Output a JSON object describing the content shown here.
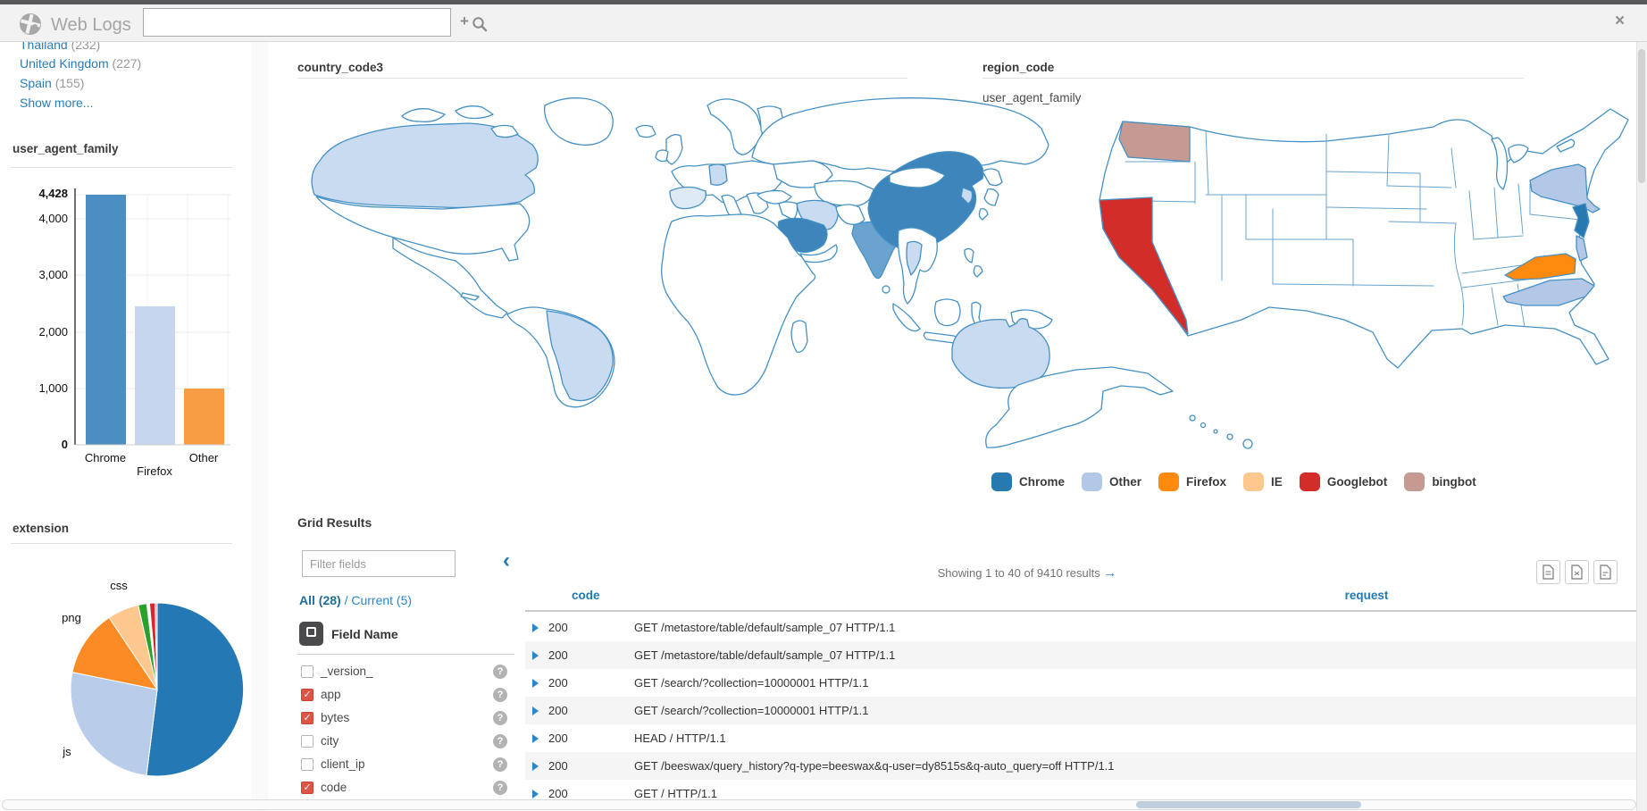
{
  "topbar": {
    "title": "Web Logs",
    "search_value": "",
    "search_placeholder": "",
    "plus_icon": "+",
    "close_icon": "×"
  },
  "sidebar": {
    "facets": [
      {
        "label": "Thailand",
        "count": "(232)"
      },
      {
        "label": "United Kingdom",
        "count": "(227)"
      },
      {
        "label": "Spain",
        "count": "(155)"
      }
    ],
    "show_more": "Show more..."
  },
  "panels": {
    "world_title": "country_code3",
    "us_title": "region_code",
    "us_subtitle": "user_agent_family"
  },
  "chart_data": [
    {
      "type": "bar",
      "title": "user_agent_family",
      "categories": [
        "Chrome",
        "Firefox",
        "Other"
      ],
      "values": [
        4428,
        2450,
        1000
      ],
      "ylim": [
        0,
        4428
      ],
      "yticks": [
        {
          "v": 4428,
          "label": "4,428"
        },
        {
          "v": 4000,
          "label": "4,000"
        },
        {
          "v": 3000,
          "label": "3,000"
        },
        {
          "v": 2000,
          "label": "2,000"
        },
        {
          "v": 1000,
          "label": "1,000"
        },
        {
          "v": 0,
          "label": "0"
        }
      ],
      "colors": [
        "#4b8ec2",
        "#c6d6ee",
        "#f99d45"
      ]
    },
    {
      "type": "pie",
      "title": "extension",
      "slices": [
        {
          "label": "",
          "pct": 51.5,
          "color": "#2478b4"
        },
        {
          "label": "js",
          "pct": 26.0,
          "color": "#b9cce9"
        },
        {
          "label": "png",
          "pct": 12.3,
          "color": "#fd8b25"
        },
        {
          "label": "css",
          "pct": 5.8,
          "color": "#fdc88e"
        },
        {
          "label": "",
          "pct": 1.6,
          "color": "#2ca02c"
        },
        {
          "label": "",
          "pct": 0.5,
          "color": "#ffffff"
        },
        {
          "label": "",
          "pct": 1.0,
          "color": "#d62728"
        },
        {
          "label": "",
          "pct": 0.4,
          "color": "#f2a2a8"
        }
      ]
    },
    {
      "type": "choropleth",
      "title": "country_code3",
      "regions": [
        {
          "name": "Canada",
          "shade": "light"
        },
        {
          "name": "Brazil",
          "shade": "light"
        },
        {
          "name": "Spain",
          "shade": "lighter"
        },
        {
          "name": "Germany",
          "shade": "light"
        },
        {
          "name": "Iran",
          "shade": "light"
        },
        {
          "name": "Saudi Arabia",
          "shade": "dark"
        },
        {
          "name": "India",
          "shade": "medium"
        },
        {
          "name": "China",
          "shade": "dark"
        },
        {
          "name": "Thailand",
          "shade": "light"
        },
        {
          "name": "South Korea",
          "shade": "light"
        },
        {
          "name": "Australia",
          "shade": "light"
        }
      ],
      "shades": {
        "dark": "#3d85ba",
        "medium": "#6ba3cf",
        "light": "#c9dbf0",
        "lighter": "#dde9f5"
      }
    },
    {
      "type": "choropleth",
      "title": "region_code",
      "subtitle": "user_agent_family",
      "states": [
        {
          "name": "Washington",
          "category": "bingbot"
        },
        {
          "name": "California",
          "category": "Googlebot"
        },
        {
          "name": "New York",
          "category": "Other"
        },
        {
          "name": "New Jersey",
          "category": "Chrome"
        },
        {
          "name": "Virginia",
          "category": "Firefox"
        },
        {
          "name": "North Carolina",
          "category": "Other"
        }
      ],
      "legend": [
        {
          "label": "Chrome",
          "color": "#2779b0"
        },
        {
          "label": "Other",
          "color": "#b3c7e6"
        },
        {
          "label": "Firefox",
          "color": "#ff8a0d"
        },
        {
          "label": "IE",
          "color": "#fdc88e"
        },
        {
          "label": "Googlebot",
          "color": "#d22d28"
        },
        {
          "label": "bingbot",
          "color": "#c49a92"
        }
      ]
    }
  ],
  "grid": {
    "title": "Grid Results",
    "filter_placeholder": "Filter fields",
    "collapse_icon": "‹",
    "tabs": {
      "all": "All (28)",
      "separator": " / ",
      "current": "Current (5)"
    },
    "field_header": "Field Name",
    "help_icon": "?",
    "fields": [
      {
        "name": "_version_",
        "checked": false
      },
      {
        "name": "app",
        "checked": true
      },
      {
        "name": "bytes",
        "checked": true
      },
      {
        "name": "city",
        "checked": false
      },
      {
        "name": "client_ip",
        "checked": false
      },
      {
        "name": "code",
        "checked": true
      }
    ],
    "showing": "Showing 1 to 40 of 9410 results",
    "showing_arrow": "→",
    "columns": [
      "code",
      "request"
    ],
    "rows": [
      {
        "code": "200",
        "request": "GET /metastore/table/default/sample_07 HTTP/1.1"
      },
      {
        "code": "200",
        "request": "GET /metastore/table/default/sample_07 HTTP/1.1"
      },
      {
        "code": "200",
        "request": "GET /search/?collection=10000001 HTTP/1.1"
      },
      {
        "code": "200",
        "request": "GET /search/?collection=10000001 HTTP/1.1"
      },
      {
        "code": "200",
        "request": "HEAD / HTTP/1.1"
      },
      {
        "code": "200",
        "request": "GET /beeswax/query_history?q-type=beeswax&q-user=dy8515s&q-auto_query=off HTTP/1.1"
      },
      {
        "code": "200",
        "request": "GET / HTTP/1.1"
      }
    ]
  }
}
